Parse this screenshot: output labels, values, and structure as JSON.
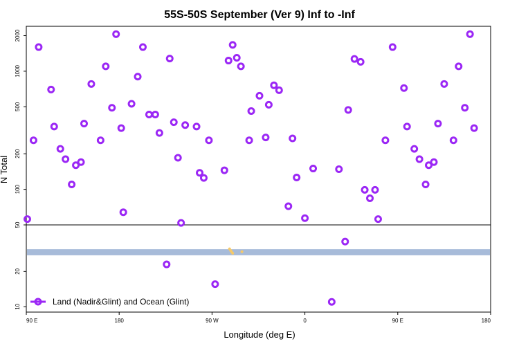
{
  "chart_data": {
    "type": "scatter",
    "title": "55S-50S September (Ver 9)   Inf to -Inf",
    "xlabel": "Longitude (deg E)",
    "ylabel": "N Total",
    "x_ticks": [
      {
        "value": 90,
        "label": "90 E"
      },
      {
        "value": 180,
        "label": "180"
      },
      {
        "value": 270,
        "label": "90 W"
      },
      {
        "value": 360,
        "label": "0"
      },
      {
        "value": 450,
        "label": "90 E"
      },
      {
        "value": 540,
        "label": "180"
      }
    ],
    "xlim": [
      90,
      540
    ],
    "upper_panel": {
      "scale": "log",
      "ylim": [
        50,
        2400
      ],
      "y_ticks": [
        {
          "value": 50,
          "label": "50"
        },
        {
          "value": 100,
          "label": "100"
        },
        {
          "value": 200,
          "label": "200"
        },
        {
          "value": 500,
          "label": "500"
        },
        {
          "value": 1000,
          "label": "1000"
        },
        {
          "value": 2000,
          "label": "2000"
        }
      ]
    },
    "lower_panel": {
      "scale": "log",
      "ylim": [
        9,
        50
      ],
      "y_ticks": [
        {
          "value": 10,
          "label": "10"
        },
        {
          "value": 20,
          "label": "20"
        }
      ]
    },
    "band": {
      "ymin": 27.5,
      "ymax": 31,
      "color": "#a7bbd9"
    },
    "band_marks": [
      {
        "lon": 287,
        "lat": 31.2,
        "color": "#f5c96a"
      },
      {
        "lon": 288,
        "lat": 30.2,
        "color": "#f5c96a"
      },
      {
        "lon": 289,
        "lat": 29.4,
        "color": "#f5c96a"
      },
      {
        "lon": 290,
        "lat": 28.6,
        "color": "#f5c96a"
      },
      {
        "lon": 299,
        "lat": 29.5,
        "color": "#f5c96a"
      }
    ],
    "legend": {
      "position": "bottom-left"
    },
    "series": [
      {
        "name": "Land (Nadir&Glint) and Ocean (Glint)",
        "color": "#9b27f5",
        "points": [
          [
            91,
            56
          ],
          [
            97,
            260
          ],
          [
            102,
            1600
          ],
          [
            114,
            700
          ],
          [
            117,
            340
          ],
          [
            123,
            220
          ],
          [
            128,
            180
          ],
          [
            134,
            110
          ],
          [
            138,
            160
          ],
          [
            143,
            170
          ],
          [
            146,
            360
          ],
          [
            153,
            780
          ],
          [
            162,
            260
          ],
          [
            167,
            1100
          ],
          [
            173,
            490
          ],
          [
            177,
            2060
          ],
          [
            182,
            330
          ],
          [
            184,
            64
          ],
          [
            192,
            530
          ],
          [
            198,
            900
          ],
          [
            203,
            1600
          ],
          [
            209,
            430
          ],
          [
            215,
            430
          ],
          [
            219,
            300
          ],
          [
            226,
            23
          ],
          [
            229,
            1280
          ],
          [
            233,
            370
          ],
          [
            237,
            185
          ],
          [
            240,
            52
          ],
          [
            244,
            350
          ],
          [
            255,
            340
          ],
          [
            258,
            138
          ],
          [
            262,
            125
          ],
          [
            267,
            260
          ],
          [
            273,
            15.6
          ],
          [
            282,
            145
          ],
          [
            286,
            1230
          ],
          [
            290,
            1670
          ],
          [
            294,
            1300
          ],
          [
            298,
            1100
          ],
          [
            306,
            260
          ],
          [
            308,
            460
          ],
          [
            316,
            620
          ],
          [
            322,
            275
          ],
          [
            325,
            520
          ],
          [
            330,
            760
          ],
          [
            335,
            690
          ],
          [
            344,
            72
          ],
          [
            348,
            270
          ],
          [
            352,
            126
          ],
          [
            360,
            57
          ],
          [
            368,
            150
          ],
          [
            386,
            11
          ],
          [
            393,
            148
          ],
          [
            399,
            36
          ],
          [
            402,
            470
          ],
          [
            408,
            1270
          ],
          [
            414,
            1200
          ],
          [
            418,
            99
          ],
          [
            423,
            84
          ],
          [
            428,
            99
          ],
          [
            431,
            56
          ],
          [
            438,
            260
          ],
          [
            445,
            1600
          ],
          [
            456,
            720
          ],
          [
            459,
            340
          ],
          [
            466,
            220
          ],
          [
            471,
            180
          ],
          [
            477,
            110
          ],
          [
            480,
            160
          ],
          [
            485,
            170
          ],
          [
            489,
            360
          ],
          [
            495,
            780
          ],
          [
            504,
            260
          ],
          [
            509,
            1100
          ],
          [
            515,
            490
          ],
          [
            520,
            2060
          ],
          [
            524,
            330
          ]
        ]
      }
    ]
  }
}
